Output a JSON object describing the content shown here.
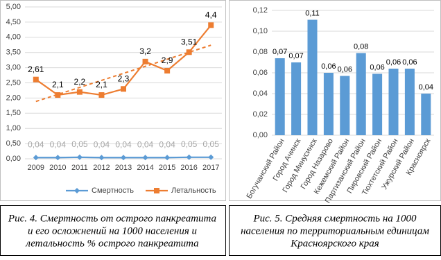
{
  "chart_data": [
    {
      "type": "line",
      "caption": [
        "Рис. 4. Смертность от острого панкреатита",
        "и его осложнений на 1000 населения и",
        "летальность % острого панкреатита"
      ],
      "categories": [
        "2009",
        "2010",
        "2011",
        "2012",
        "2013",
        "2014",
        "2015",
        "2016",
        "2017"
      ],
      "series": [
        {
          "name": "Смертность",
          "color": "#5b9bd5",
          "marker": "diamond",
          "values": [
            0.04,
            0.04,
            0.05,
            0.04,
            0.04,
            0.04,
            0.04,
            0.05,
            0.05
          ],
          "value_labels": [
            "0,04",
            "0,04",
            "0,05",
            "0,04",
            "0,04",
            "0,04",
            "0,04",
            "0,05",
            "0,05"
          ]
        },
        {
          "name": "Летальность",
          "color": "#ed7d31",
          "marker": "square",
          "trendline": true,
          "values": [
            2.61,
            2.1,
            2.2,
            2.1,
            2.3,
            3.2,
            2.9,
            3.51,
            4.4
          ],
          "value_labels": [
            "2,61",
            "2,1",
            "2,2",
            "2,1",
            "2,3",
            "3,2",
            "2,9",
            "3,51",
            "4,4"
          ]
        }
      ],
      "ylim": [
        0,
        5
      ],
      "yticks": [
        {
          "value": 0,
          "label": "0,00"
        },
        {
          "value": 0.5,
          "label": "0,50"
        },
        {
          "value": 1,
          "label": "1,00"
        },
        {
          "value": 1.5,
          "label": "1,50"
        },
        {
          "value": 2,
          "label": "2,00"
        },
        {
          "value": 2.5,
          "label": "2,50"
        },
        {
          "value": 3,
          "label": "3,00"
        },
        {
          "value": 3.5,
          "label": "3,50"
        },
        {
          "value": 4,
          "label": "4,00"
        },
        {
          "value": 4.5,
          "label": "4,50"
        },
        {
          "value": 5,
          "label": "5,00"
        }
      ],
      "grid": true,
      "legend": "bottom"
    },
    {
      "type": "bar",
      "caption": [
        "Рис. 5. Средняя смертность на 1000",
        "населения по территориальным единицам",
        "Красноярского края"
      ],
      "categories": [
        "Богучанский Район",
        "Город Ачинск",
        "Город Минусинск",
        "Город Назарово",
        "Кежемский Район",
        "Партизанский Район",
        "Пировский Район",
        "Тюхтетский Район",
        "Ужурский Район",
        "Красноярск"
      ],
      "values": [
        0.074,
        0.07,
        0.111,
        0.06,
        0.057,
        0.079,
        0.059,
        0.064,
        0.064,
        0.04
      ],
      "value_labels": [
        "0,07",
        "0,07",
        "0,11",
        "0,06",
        "0,06",
        "0,08",
        "0,06",
        "0,06",
        "0,06",
        "0,04"
      ],
      "color": "#5b9bd5",
      "ylim": [
        0,
        0.12
      ],
      "yticks": [
        {
          "value": 0,
          "label": "0,00"
        },
        {
          "value": 0.02,
          "label": "0,02"
        },
        {
          "value": 0.04,
          "label": "0,04"
        },
        {
          "value": 0.06,
          "label": "0,06"
        },
        {
          "value": 0.08,
          "label": "0,08"
        },
        {
          "value": 0.1,
          "label": "0,10"
        },
        {
          "value": 0.12,
          "label": "0,12"
        }
      ],
      "grid": true
    }
  ]
}
